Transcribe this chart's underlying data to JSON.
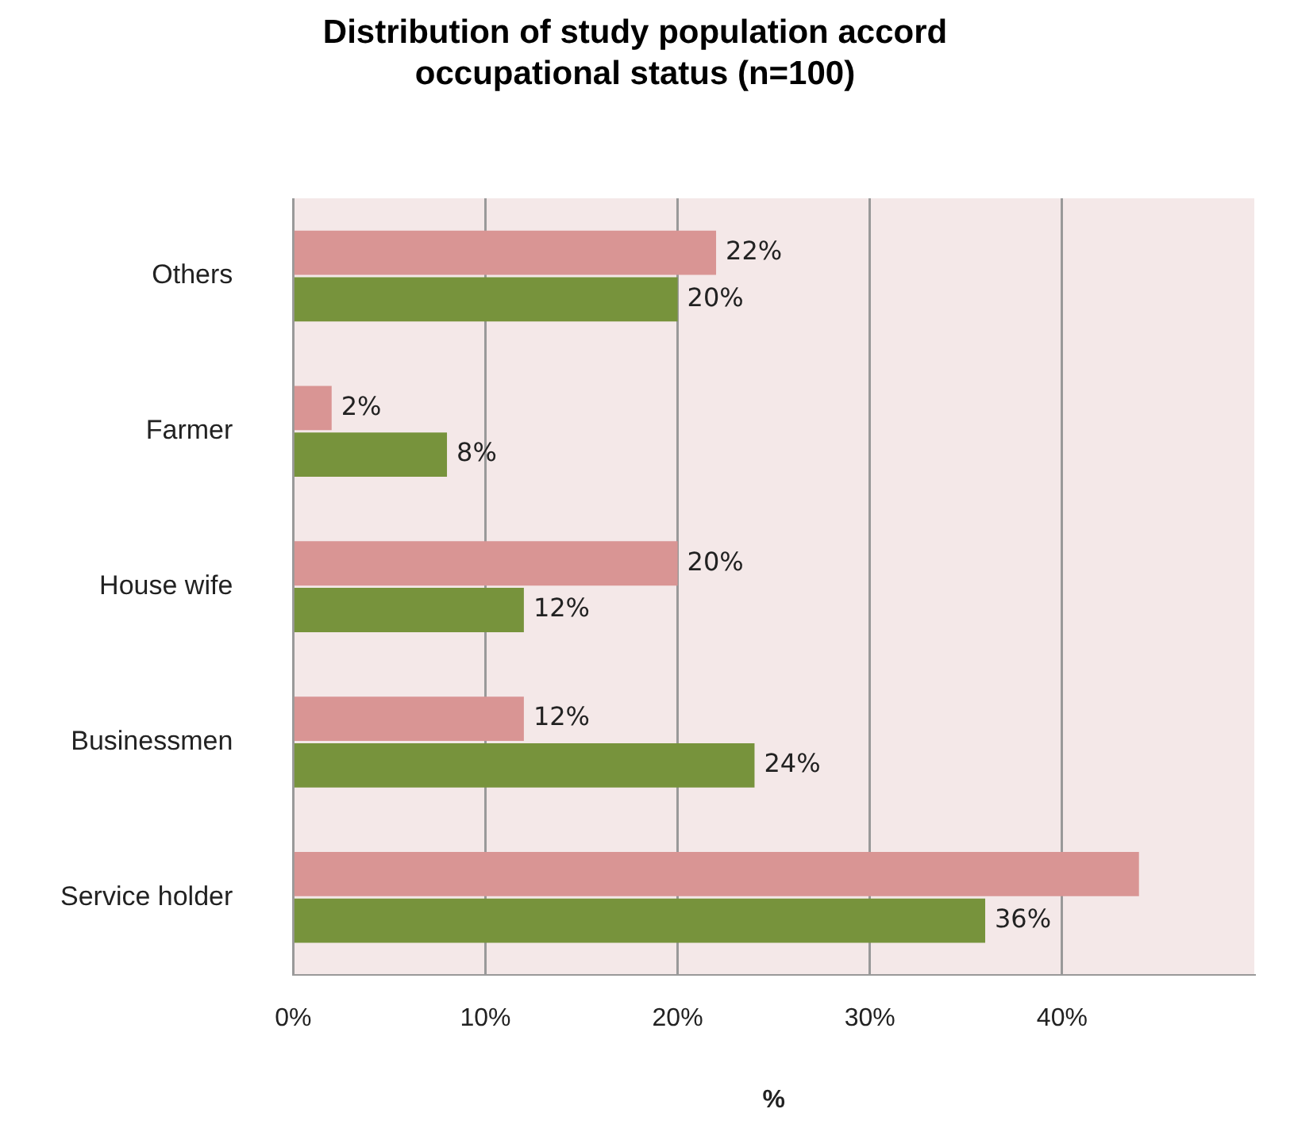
{
  "chart_data": {
    "type": "bar",
    "orientation": "horizontal",
    "title": "Distribution of study population accord occupational status (n=100)",
    "xlabel": "%",
    "categories": [
      "Others",
      "Farmer",
      "House wife",
      "Businessmen",
      "Service holder"
    ],
    "series": [
      {
        "color": "#d99594",
        "values": [
          22,
          2,
          20,
          12,
          44
        ],
        "value_labels": [
          "22%",
          "2%",
          "20%",
          "12%",
          null
        ]
      },
      {
        "color": "#77933c",
        "values": [
          20,
          8,
          12,
          24,
          36
        ],
        "value_labels": [
          "20%",
          "8%",
          "12%",
          "24%",
          "36%"
        ]
      }
    ],
    "xlim": [
      0,
      50
    ],
    "xticks": [
      {
        "value": 0,
        "label": "0%"
      },
      {
        "value": 10,
        "label": "10%"
      },
      {
        "value": 20,
        "label": "20%"
      },
      {
        "value": 30,
        "label": "30%"
      },
      {
        "value": 40,
        "label": "40%"
      }
    ],
    "grid": "x",
    "legend": false
  }
}
